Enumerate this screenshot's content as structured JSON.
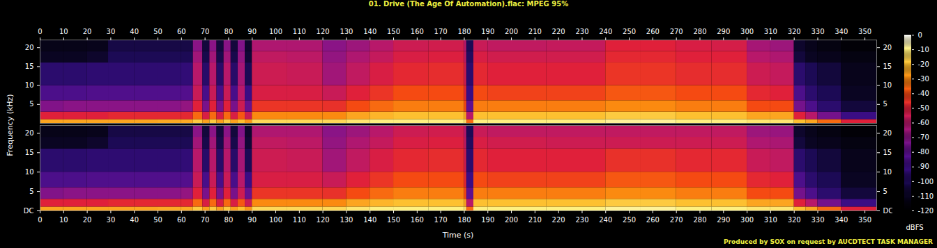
{
  "chart_data": {
    "type": "heatmap",
    "title": "01. Drive (The Age Of Automation).flac: MPEG 95%",
    "x_label": "Time (s)",
    "y_label": "Frequency (kHz)",
    "caption": "Produced by SOX on request by AUCDTECT TASK MANAGER",
    "xlim": [
      0,
      355
    ],
    "xticks": [
      0,
      10,
      20,
      30,
      40,
      50,
      60,
      70,
      80,
      90,
      100,
      110,
      120,
      130,
      140,
      150,
      160,
      170,
      180,
      190,
      200,
      210,
      220,
      230,
      240,
      250,
      260,
      270,
      280,
      290,
      300,
      310,
      320,
      330,
      340,
      350
    ],
    "ylim": [
      0,
      22.05
    ],
    "time_bins": [
      0,
      10,
      20,
      29,
      40,
      50,
      60,
      65,
      69,
      72,
      75,
      78,
      81,
      84,
      87,
      90,
      105,
      120,
      130,
      140,
      150,
      165,
      180,
      181,
      184,
      190,
      215,
      240,
      255,
      270,
      285,
      300,
      310,
      320,
      325,
      330,
      340,
      355
    ],
    "frequency_bins": [
      0,
      1,
      3,
      6,
      10,
      16,
      19,
      22.05
    ],
    "colorbar": {
      "label": "dBFS",
      "range": [
        -120,
        0
      ],
      "ticks": [
        -120,
        -110,
        -100,
        -90,
        -80,
        -70,
        -60,
        -50,
        -40,
        -30,
        -20,
        -10,
        0
      ]
    },
    "channels": [
      {
        "yticks": [
          5,
          10,
          15,
          20
        ],
        "cells": [
          [
            -25,
            -50,
            -72,
            -85,
            -95,
            -110,
            -113
          ],
          [
            -25,
            -50,
            -70,
            -85,
            -95,
            -110,
            -113
          ],
          [
            -25,
            -50,
            -70,
            -84,
            -94,
            -108,
            -112
          ],
          [
            -25,
            -48,
            -70,
            -84,
            -94,
            -100,
            -103
          ],
          [
            -25,
            -48,
            -70,
            -84,
            -94,
            -100,
            -103
          ],
          [
            -24,
            -48,
            -70,
            -84,
            -94,
            -100,
            -103
          ],
          [
            -24,
            -48,
            -68,
            -83,
            -93,
            -100,
            -103
          ],
          [
            -18,
            -35,
            -50,
            -56,
            -60,
            -65,
            -70
          ],
          [
            -26,
            -52,
            -74,
            -86,
            -96,
            -102,
            -105
          ],
          [
            -18,
            -35,
            -50,
            -56,
            -60,
            -65,
            -70
          ],
          [
            -26,
            -52,
            -74,
            -86,
            -96,
            -102,
            -105
          ],
          [
            -18,
            -35,
            -50,
            -56,
            -60,
            -65,
            -70
          ],
          [
            -26,
            -52,
            -74,
            -86,
            -96,
            -102,
            -105
          ],
          [
            -20,
            -38,
            -55,
            -60,
            -64,
            -68,
            -72
          ],
          [
            -28,
            -55,
            -78,
            -90,
            -100,
            -106,
            -108
          ],
          [
            -15,
            -30,
            -45,
            -52,
            -55,
            -58,
            -62
          ],
          [
            -15,
            -30,
            -45,
            -52,
            -56,
            -59,
            -62
          ],
          [
            -15,
            -30,
            -46,
            -56,
            -65,
            -68,
            -70
          ],
          [
            -12,
            -25,
            -40,
            -50,
            -58,
            -62,
            -66
          ],
          [
            -10,
            -22,
            -35,
            -45,
            -52,
            -57,
            -60
          ],
          [
            -10,
            -20,
            -32,
            -40,
            -48,
            -52,
            -55
          ],
          [
            -10,
            -20,
            -32,
            -40,
            -47,
            -51,
            -54
          ],
          [
            -12,
            -25,
            -40,
            -48,
            -54,
            -58,
            -60
          ],
          [
            -35,
            -60,
            -80,
            -90,
            -95,
            -98,
            -100
          ],
          [
            -10,
            -20,
            -32,
            -40,
            -48,
            -52,
            -56
          ],
          [
            -10,
            -20,
            -32,
            -42,
            -50,
            -54,
            -58
          ],
          [
            -10,
            -20,
            -32,
            -42,
            -50,
            -54,
            -57
          ],
          [
            -8,
            -18,
            -30,
            -38,
            -45,
            -48,
            -50
          ],
          [
            -8,
            -18,
            -30,
            -38,
            -45,
            -48,
            -50
          ],
          [
            -10,
            -20,
            -32,
            -40,
            -47,
            -50,
            -52
          ],
          [
            -10,
            -20,
            -32,
            -40,
            -47,
            -50,
            -53
          ],
          [
            -12,
            -25,
            -40,
            -48,
            -55,
            -60,
            -64
          ],
          [
            -12,
            -25,
            -40,
            -50,
            -57,
            -62,
            -66
          ],
          [
            -20,
            -50,
            -75,
            -85,
            -95,
            -105,
            -108
          ],
          [
            -25,
            -60,
            -85,
            -95,
            -100,
            -110,
            -112
          ],
          [
            -35,
            -75,
            -95,
            -100,
            -105,
            -112,
            -115
          ],
          [
            -50,
            -90,
            -105,
            -110,
            -112,
            -115,
            -118
          ]
        ]
      },
      {
        "yticks": [
          {
            "value": 0,
            "label": "DC"
          },
          5,
          10,
          15,
          20
        ],
        "cells": [
          [
            -25,
            -50,
            -72,
            -85,
            -95,
            -110,
            -113
          ],
          [
            -25,
            -50,
            -70,
            -85,
            -95,
            -110,
            -113
          ],
          [
            -25,
            -50,
            -70,
            -84,
            -94,
            -108,
            -112
          ],
          [
            -25,
            -48,
            -70,
            -84,
            -94,
            -100,
            -103
          ],
          [
            -25,
            -48,
            -70,
            -84,
            -94,
            -100,
            -103
          ],
          [
            -24,
            -48,
            -70,
            -84,
            -94,
            -100,
            -103
          ],
          [
            -24,
            -48,
            -68,
            -83,
            -93,
            -100,
            -103
          ],
          [
            -18,
            -35,
            -50,
            -56,
            -60,
            -65,
            -70
          ],
          [
            -26,
            -52,
            -74,
            -86,
            -96,
            -102,
            -105
          ],
          [
            -18,
            -35,
            -50,
            -56,
            -60,
            -65,
            -70
          ],
          [
            -26,
            -52,
            -74,
            -86,
            -96,
            -102,
            -105
          ],
          [
            -18,
            -35,
            -50,
            -56,
            -60,
            -65,
            -70
          ],
          [
            -26,
            -52,
            -74,
            -86,
            -96,
            -102,
            -105
          ],
          [
            -20,
            -38,
            -55,
            -60,
            -64,
            -68,
            -72
          ],
          [
            -28,
            -55,
            -78,
            -90,
            -100,
            -106,
            -108
          ],
          [
            -15,
            -30,
            -45,
            -52,
            -55,
            -58,
            -62
          ],
          [
            -15,
            -30,
            -45,
            -52,
            -56,
            -59,
            -62
          ],
          [
            -15,
            -30,
            -46,
            -56,
            -65,
            -68,
            -70
          ],
          [
            -12,
            -25,
            -40,
            -50,
            -58,
            -62,
            -66
          ],
          [
            -10,
            -22,
            -35,
            -45,
            -52,
            -57,
            -60
          ],
          [
            -10,
            -20,
            -32,
            -40,
            -48,
            -52,
            -55
          ],
          [
            -10,
            -20,
            -32,
            -40,
            -47,
            -51,
            -54
          ],
          [
            -12,
            -25,
            -40,
            -48,
            -54,
            -58,
            -60
          ],
          [
            -35,
            -60,
            -80,
            -90,
            -95,
            -98,
            -100
          ],
          [
            -10,
            -20,
            -32,
            -40,
            -48,
            -52,
            -56
          ],
          [
            -10,
            -20,
            -32,
            -42,
            -50,
            -54,
            -58
          ],
          [
            -10,
            -20,
            -32,
            -42,
            -50,
            -55,
            -58
          ],
          [
            -8,
            -18,
            -30,
            -38,
            -46,
            -55,
            -58
          ],
          [
            -8,
            -18,
            -30,
            -38,
            -46,
            -55,
            -58
          ],
          [
            -10,
            -20,
            -32,
            -40,
            -48,
            -55,
            -58
          ],
          [
            -10,
            -20,
            -32,
            -40,
            -48,
            -55,
            -58
          ],
          [
            -12,
            -25,
            -40,
            -48,
            -56,
            -62,
            -66
          ],
          [
            -12,
            -25,
            -40,
            -50,
            -58,
            -63,
            -67
          ],
          [
            -20,
            -50,
            -75,
            -85,
            -95,
            -105,
            -108
          ],
          [
            -25,
            -60,
            -85,
            -95,
            -100,
            -110,
            -112
          ],
          [
            -35,
            -75,
            -95,
            -100,
            -105,
            -112,
            -115
          ],
          [
            -50,
            -90,
            -105,
            -110,
            -112,
            -115,
            -118
          ]
        ]
      }
    ]
  }
}
